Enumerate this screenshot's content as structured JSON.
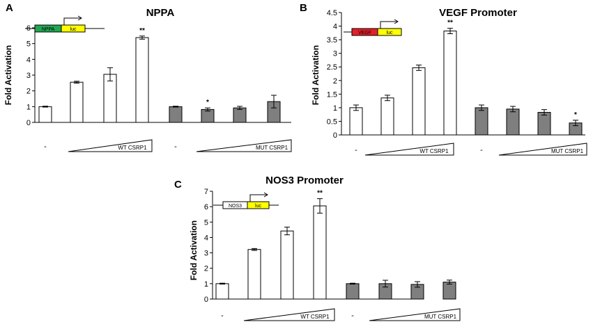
{
  "chart_data": [
    {
      "panel": "A",
      "type": "bar",
      "title": "NPPA",
      "xlabel": "",
      "ylabel": "Fold Activation",
      "ylim": [
        0,
        6
      ],
      "yticks": [
        "0",
        "1",
        "2",
        "3",
        "4",
        "5",
        "6"
      ],
      "bars": [
        {
          "value": 1.0,
          "error": 0.03,
          "group": "WT",
          "sig": ""
        },
        {
          "value": 2.55,
          "error": 0.06,
          "group": "WT",
          "sig": ""
        },
        {
          "value": 3.05,
          "error": 0.42,
          "group": "WT",
          "sig": ""
        },
        {
          "value": 5.38,
          "error": 0.1,
          "group": "WT",
          "sig": "**"
        },
        {
          "value": 1.0,
          "error": 0.03,
          "group": "MUT",
          "sig": ""
        },
        {
          "value": 0.82,
          "error": 0.1,
          "group": "MUT",
          "sig": "*"
        },
        {
          "value": 0.92,
          "error": 0.1,
          "group": "MUT",
          "sig": ""
        },
        {
          "value": 1.32,
          "error": 0.4,
          "group": "MUT",
          "sig": ""
        }
      ],
      "xlabels": {
        "wt_minus": "-",
        "wt": "WT CSRP1",
        "mut_minus": "-",
        "mut": "MUT CSRP1"
      },
      "construct": {
        "gene": "NPPA",
        "reporter": "luc",
        "gene_color": "#22a652",
        "luc_color": "#ffff00"
      }
    },
    {
      "panel": "B",
      "type": "bar",
      "title": "VEGF Promoter",
      "xlabel": "",
      "ylabel": "Fold Activation",
      "ylim": [
        0,
        4.5
      ],
      "yticks": [
        "0",
        "0.5",
        "1",
        "1.5",
        "2",
        "2.5",
        "3",
        "3.5",
        "4",
        "4.5"
      ],
      "bars": [
        {
          "value": 1.0,
          "error": 0.1,
          "group": "WT",
          "sig": ""
        },
        {
          "value": 1.36,
          "error": 0.1,
          "group": "WT",
          "sig": ""
        },
        {
          "value": 2.47,
          "error": 0.1,
          "group": "WT",
          "sig": ""
        },
        {
          "value": 3.82,
          "error": 0.1,
          "group": "WT",
          "sig": "**"
        },
        {
          "value": 1.0,
          "error": 0.1,
          "group": "MUT",
          "sig": ""
        },
        {
          "value": 0.95,
          "error": 0.1,
          "group": "MUT",
          "sig": ""
        },
        {
          "value": 0.83,
          "error": 0.1,
          "group": "MUT",
          "sig": ""
        },
        {
          "value": 0.44,
          "error": 0.1,
          "group": "MUT",
          "sig": "*"
        }
      ],
      "xlabels": {
        "wt_minus": "-",
        "wt": "WT CSRP1",
        "mut_minus": "-",
        "mut": "MUT CSRP1"
      },
      "construct": {
        "gene": "VEGF",
        "reporter": "luc",
        "gene_color": "#e3202a",
        "luc_color": "#ffff00"
      }
    },
    {
      "panel": "C",
      "type": "bar",
      "title": "NOS3 Promoter",
      "xlabel": "",
      "ylabel": "Fold Activation",
      "ylim": [
        0,
        7
      ],
      "yticks": [
        "0",
        "1",
        "2",
        "3",
        "4",
        "5",
        "6",
        "7"
      ],
      "bars": [
        {
          "value": 1.0,
          "error": 0.03,
          "group": "WT",
          "sig": ""
        },
        {
          "value": 3.22,
          "error": 0.06,
          "group": "WT",
          "sig": ""
        },
        {
          "value": 4.42,
          "error": 0.25,
          "group": "WT",
          "sig": ""
        },
        {
          "value": 6.05,
          "error": 0.47,
          "group": "WT",
          "sig": "**"
        },
        {
          "value": 1.0,
          "error": 0.03,
          "group": "MUT",
          "sig": ""
        },
        {
          "value": 1.0,
          "error": 0.22,
          "group": "MUT",
          "sig": ""
        },
        {
          "value": 0.95,
          "error": 0.18,
          "group": "MUT",
          "sig": ""
        },
        {
          "value": 1.1,
          "error": 0.13,
          "group": "MUT",
          "sig": ""
        }
      ],
      "xlabels": {
        "wt_minus": "-",
        "wt": "WT CSRP1",
        "mut_minus": "-",
        "mut": "MUT CSRP1"
      },
      "construct": {
        "gene": "NOS3",
        "reporter": "luc",
        "gene_color": "#ffffff",
        "luc_color": "#ffff00"
      }
    }
  ],
  "colors": {
    "wt_fill": "#ffffff",
    "mut_fill": "#7f7f7f",
    "bar_stroke": "#000000"
  }
}
